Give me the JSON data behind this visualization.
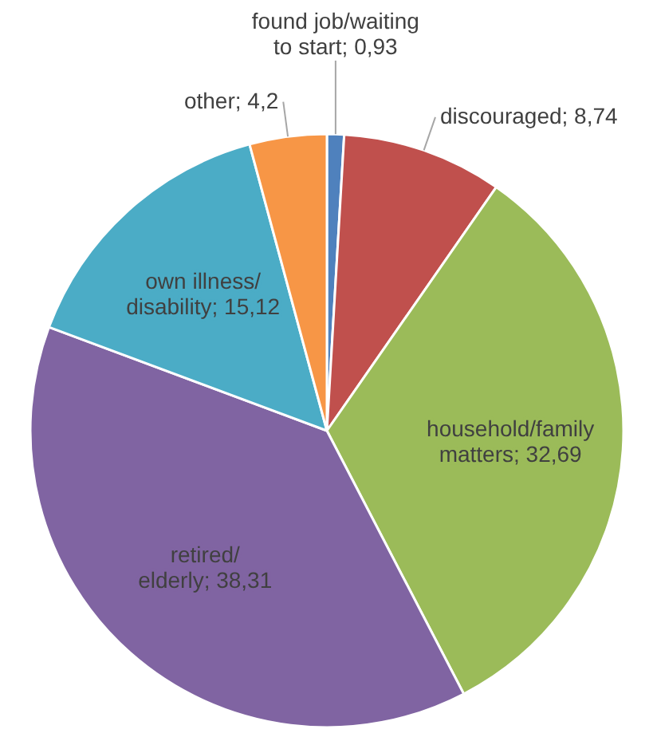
{
  "chart_data": {
    "type": "pie",
    "categories": [
      "found job/waiting to start",
      "discouraged",
      "household/family matters",
      "retired/elderly",
      "own illness/disability",
      "other"
    ],
    "values": [
      0.93,
      8.74,
      32.69,
      38.31,
      15.12,
      4.2
    ],
    "value_labels": [
      "0,93",
      "8,74",
      "32,69",
      "38,31",
      "15,12",
      "4,2"
    ],
    "colors": [
      "#4f81bd",
      "#c0504d",
      "#9bbb59",
      "#8064a2",
      "#4bacc6",
      "#f79646"
    ],
    "legend": false
  }
}
